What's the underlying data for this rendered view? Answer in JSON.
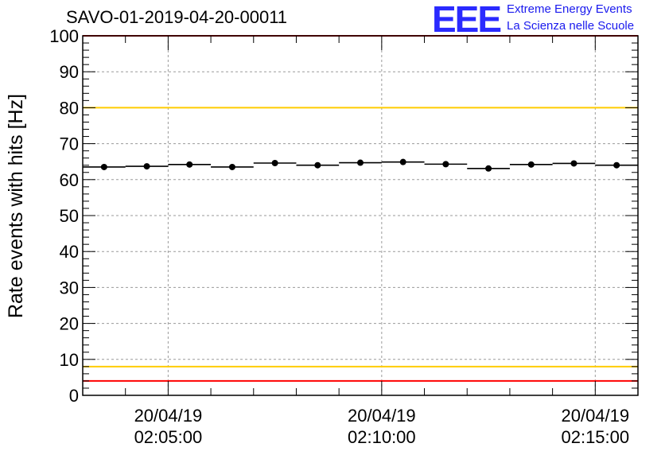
{
  "header": {
    "title": "SAVO-01-2019-04-20-00011",
    "logo_text": "EEE",
    "logo_line1": "Extreme Energy Events",
    "logo_line2": "La Scienza nelle Scuole"
  },
  "colors": {
    "upper_limit": "#ff0000",
    "lower_limit": "#ff0000",
    "upper_warning": "#ffcc00",
    "lower_warning": "#ffcc00",
    "marker": "#000000",
    "logo": "#2a2aff"
  },
  "chart_data": {
    "type": "scatter",
    "title": "SAVO-01-2019-04-20-00011",
    "ylabel": "Rate events with hits [Hz]",
    "xlabel": "",
    "ylim": [
      0,
      100
    ],
    "xlim": [
      "2019-04-20 02:03:00",
      "2019-04-20 02:16:00"
    ],
    "grid": true,
    "yticks": [
      0,
      10,
      20,
      30,
      40,
      50,
      60,
      70,
      80,
      90,
      100
    ],
    "xticks": [
      {
        "time": "2019-04-20 02:05:00",
        "line1": "20/04/19",
        "line2": "02:05:00"
      },
      {
        "time": "2019-04-20 02:10:00",
        "line1": "20/04/19",
        "line2": "02:10:00"
      },
      {
        "time": "2019-04-20 02:15:00",
        "line1": "20/04/19",
        "line2": "02:15:00"
      }
    ],
    "reference_lines": [
      {
        "name": "upper-limit",
        "y": 100,
        "color": "#ff0000"
      },
      {
        "name": "upper-warning",
        "y": 80,
        "color": "#ffcc00"
      },
      {
        "name": "lower-warning",
        "y": 8,
        "color": "#ffcc00"
      },
      {
        "name": "lower-limit",
        "y": 4,
        "color": "#ff0000"
      }
    ],
    "series": [
      {
        "x": [
          "2019-04-20 02:03:30",
          "2019-04-20 02:04:30",
          "2019-04-20 02:05:30",
          "2019-04-20 02:06:30",
          "2019-04-20 02:07:30",
          "2019-04-20 02:08:30",
          "2019-04-20 02:09:30",
          "2019-04-20 02:10:30",
          "2019-04-20 02:11:30",
          "2019-04-20 02:12:30",
          "2019-04-20 02:13:30",
          "2019-04-20 02:14:30",
          "2019-04-20 02:15:30"
        ],
        "values": [
          63.5,
          63.7,
          64.2,
          63.5,
          64.6,
          64.0,
          64.7,
          64.9,
          64.3,
          63.1,
          64.2,
          64.5,
          64.0
        ],
        "bin_halfwidth_seconds": 30
      }
    ]
  }
}
